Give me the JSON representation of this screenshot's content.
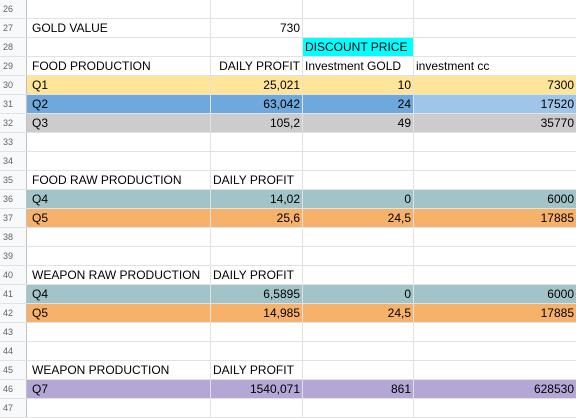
{
  "rows": [
    {
      "n": "26"
    },
    {
      "n": "27",
      "a": "GOLD VALUE",
      "b": "730"
    },
    {
      "n": "28",
      "c": "DISCOUNT PRICE"
    },
    {
      "n": "29",
      "a": "FOOD PRODUCTION",
      "b": "DAILY PROFIT",
      "c": "Investment GOLD",
      "d": "investment cc"
    },
    {
      "n": "30",
      "a": "Q1",
      "b": "25,021",
      "c": "10",
      "d": "7300"
    },
    {
      "n": "31",
      "a": "Q2",
      "b": "63,042",
      "c": "24",
      "d": "17520"
    },
    {
      "n": "32",
      "a": "Q3",
      "b": "105,2",
      "c": "49",
      "d": "35770"
    },
    {
      "n": "33"
    },
    {
      "n": "34"
    },
    {
      "n": "35",
      "a": "FOOD RAW PRODUCTION",
      "b": "DAILY PROFIT"
    },
    {
      "n": "36",
      "a": "Q4",
      "b": "14,02",
      "c": "0",
      "d": "6000"
    },
    {
      "n": "37",
      "a": "Q5",
      "b": "25,6",
      "c": "24,5",
      "d": "17885"
    },
    {
      "n": "38"
    },
    {
      "n": "39"
    },
    {
      "n": "40",
      "a": "WEAPON RAW PRODUCTION",
      "b": "DAILY PROFIT"
    },
    {
      "n": "41",
      "a": "Q4",
      "b": "6,5895",
      "c": "0",
      "d": "6000"
    },
    {
      "n": "42",
      "a": "Q5",
      "b": "14,985",
      "c": "24,5",
      "d": "17885"
    },
    {
      "n": "43"
    },
    {
      "n": "44"
    },
    {
      "n": "45",
      "a": "WEAPON PRODUCTION",
      "b": "DAILY PROFIT"
    },
    {
      "n": "46",
      "a": "Q7",
      "b": "1540,071",
      "c": "861",
      "d": "628530"
    },
    {
      "n": "47"
    }
  ],
  "colors": {
    "yellow": "#ffe599",
    "blue": "#6fa8dc",
    "light_blue": "#9fc5e8",
    "grey": "#cccccc",
    "teal": "#a2c4c9",
    "orange": "#f6b26b",
    "purple": "#b4a7d6",
    "cyan": "#00ffff"
  }
}
